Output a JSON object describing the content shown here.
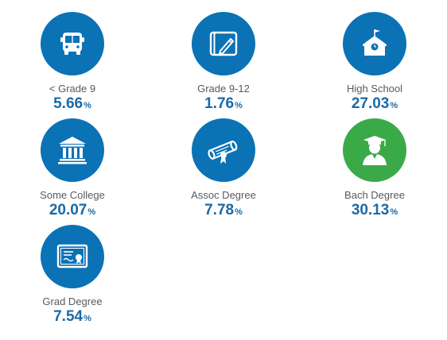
{
  "colors": {
    "circle_default": "#0b72b5",
    "circle_highlight": "#3aaa49",
    "value_text": "#1a6aa6",
    "label_text": "#555a60"
  },
  "items": [
    {
      "label": "< Grade 9",
      "value": "5.66",
      "unit": "%",
      "icon": "school-bus-icon",
      "highlight": false
    },
    {
      "label": "Grade 9-12",
      "value": "1.76",
      "unit": "%",
      "icon": "notebook-pencil-icon",
      "highlight": false
    },
    {
      "label": "High School",
      "value": "27.03",
      "unit": "%",
      "icon": "schoolhouse-icon",
      "highlight": false
    },
    {
      "label": "Some College",
      "value": "20.07",
      "unit": "%",
      "icon": "college-building-icon",
      "highlight": false
    },
    {
      "label": "Assoc Degree",
      "value": "7.78",
      "unit": "%",
      "icon": "diploma-scroll-icon",
      "highlight": false
    },
    {
      "label": "Bach Degree",
      "value": "30.13",
      "unit": "%",
      "icon": "graduate-icon",
      "highlight": true
    },
    {
      "label": "Grad Degree",
      "value": "7.54",
      "unit": "%",
      "icon": "certificate-icon",
      "highlight": false
    }
  ]
}
